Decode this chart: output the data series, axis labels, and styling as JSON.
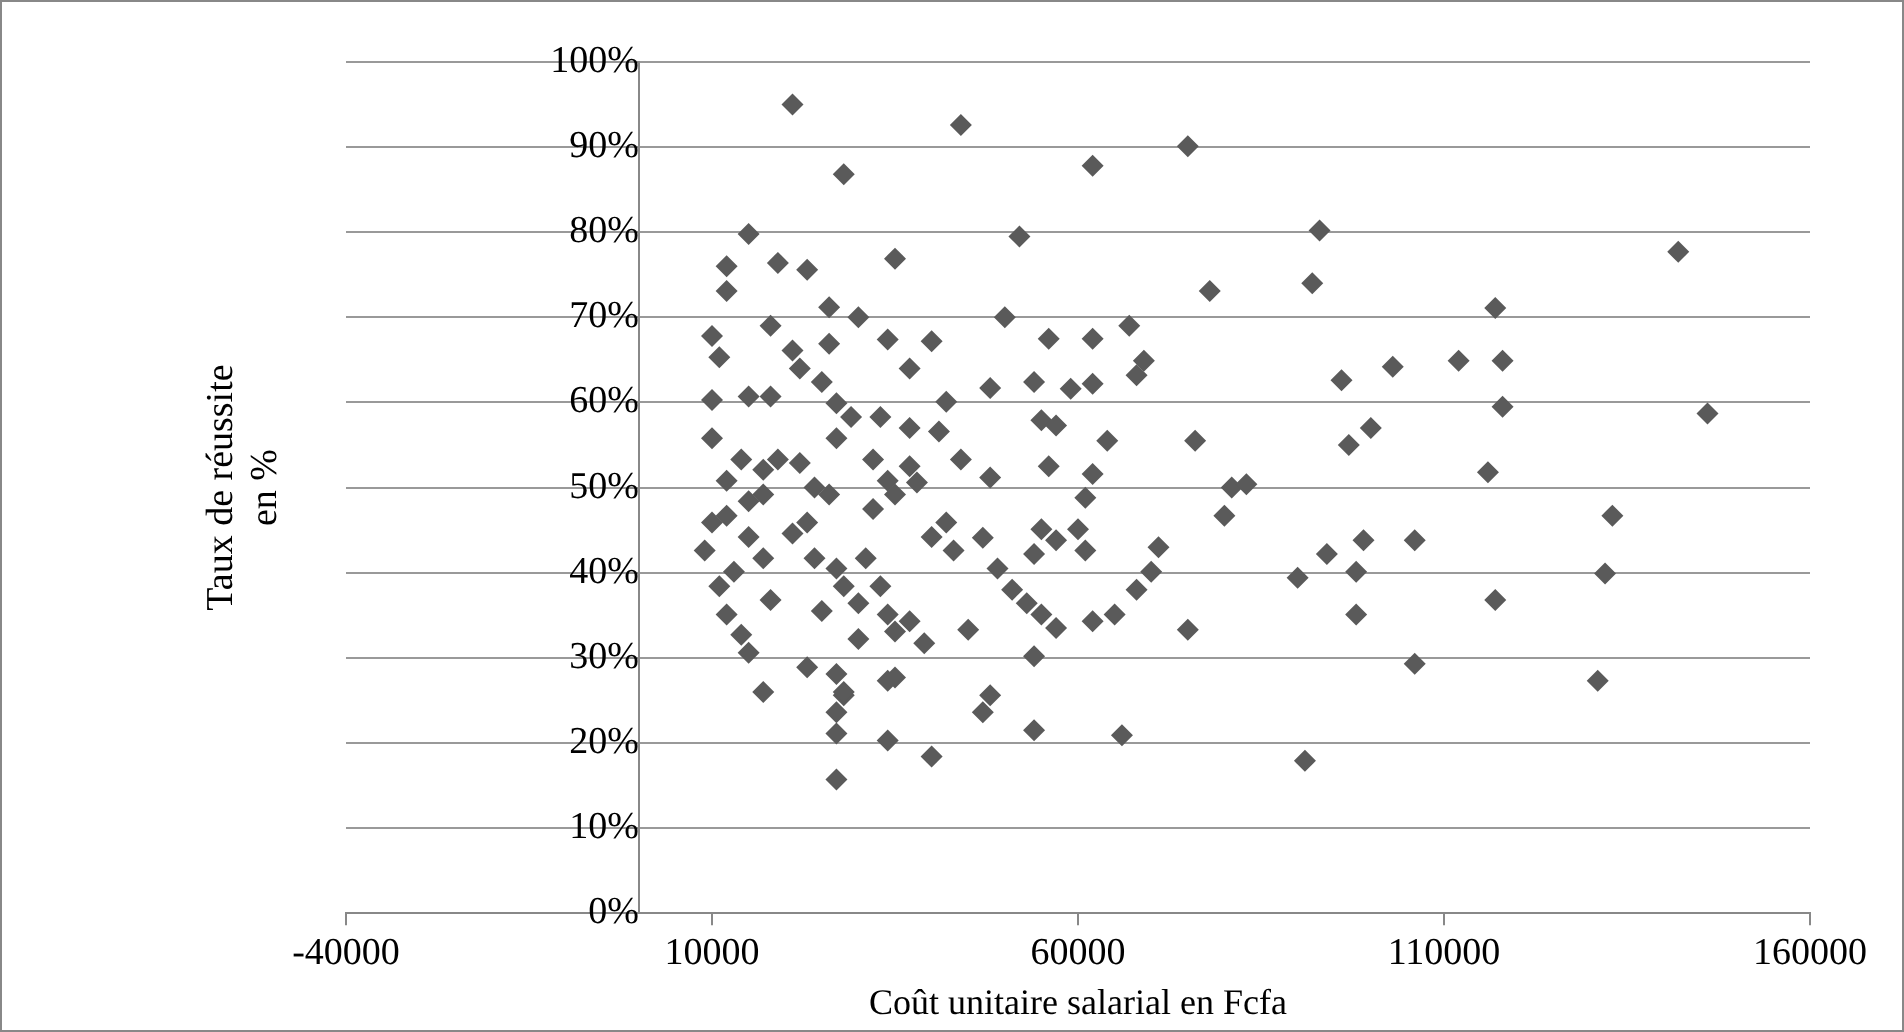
{
  "chart_data": {
    "type": "scatter",
    "xlabel": "Coût unitaire salarial en Fcfa",
    "ylabel": "Taux de réussite en %",
    "xlim": [
      -40000,
      160000
    ],
    "xticks": [
      -40000,
      10000,
      60000,
      110000,
      160000
    ],
    "ylim": [
      0,
      100
    ],
    "yticks": [
      {
        "value": 0,
        "label": "0%"
      },
      {
        "value": 10,
        "label": "10%"
      },
      {
        "value": 20,
        "label": "20%"
      },
      {
        "value": 30,
        "label": "30%"
      },
      {
        "value": 40,
        "label": "40%"
      },
      {
        "value": 50,
        "label": "50%"
      },
      {
        "value": 60,
        "label": "60%"
      },
      {
        "value": 70,
        "label": "70%"
      },
      {
        "value": 80,
        "label": "80%"
      },
      {
        "value": 90,
        "label": "90%"
      },
      {
        "value": 100,
        "label": "100%"
      }
    ],
    "grid": "y",
    "legend": false,
    "marker": "diamond",
    "series": [
      {
        "color": "#5a5a5a",
        "x": [
          142000,
          146000,
          133000,
          132000,
          131000,
          93000,
          92000,
          117000,
          78000,
          96000,
          103000,
          112000,
          118000,
          118000,
          100000,
          97000,
          116000,
          81000,
          83000,
          80000,
          90000,
          94000,
          99000,
          98000,
          98000,
          106000,
          117000,
          106000,
          91000,
          44000,
          62000,
          75000,
          52000,
          50000,
          40000,
          56000,
          62000,
          67000,
          69000,
          68000,
          48000,
          54000,
          59000,
          62000,
          42000,
          41000,
          55000,
          57000,
          64000,
          76000,
          44000,
          48000,
          56000,
          62000,
          61000,
          38000,
          42000,
          40000,
          43000,
          47000,
          55000,
          57000,
          60000,
          61000,
          54000,
          71000,
          70000,
          68000,
          49000,
          51000,
          53000,
          55000,
          57000,
          62000,
          65000,
          45000,
          39000,
          75000,
          54000,
          48000,
          47000,
          54000,
          66000,
          40000,
          21000,
          28000,
          15000,
          35000,
          12000,
          19000,
          23000,
          12000,
          26000,
          30000,
          10000,
          11000,
          18000,
          21000,
          22000,
          26000,
          34000,
          37000,
          10000,
          15000,
          18000,
          25000,
          27000,
          29000,
          33000,
          37000,
          10000,
          27000,
          14000,
          12000,
          17000,
          19000,
          15000,
          12000,
          17000,
          22000,
          24000,
          32000,
          34000,
          37000,
          10000,
          9000,
          21000,
          23000,
          26000,
          32000,
          35000,
          15000,
          17000,
          13000,
          24000,
          27000,
          28000,
          31000,
          33000,
          11000,
          12000,
          14000,
          18000,
          25000,
          30000,
          34000,
          37000,
          30000,
          23000,
          27000,
          17000,
          35000,
          28000,
          15000,
          28000,
          27000,
          27000,
          34000,
          34000,
          27000,
          35000
        ],
        "values": [
          77.7,
          58.7,
          46.7,
          39.9,
          27.3,
          80.2,
          74.0,
          71.1,
          73.1,
          62.6,
          64.2,
          64.9,
          64.9,
          59.5,
          57.0,
          55.0,
          51.8,
          50.0,
          50.4,
          46.7,
          39.4,
          42.2,
          43.8,
          40.1,
          35.1,
          43.8,
          36.8,
          29.3,
          17.9,
          92.6,
          87.8,
          90.1,
          79.5,
          70.0,
          67.2,
          67.5,
          67.5,
          69.0,
          64.9,
          63.2,
          61.7,
          62.4,
          61.6,
          62.2,
          60.1,
          56.6,
          57.9,
          57.3,
          55.5,
          55.5,
          53.3,
          51.2,
          52.5,
          51.6,
          48.8,
          50.6,
          45.9,
          44.2,
          42.6,
          44.1,
          45.1,
          43.8,
          45.1,
          42.6,
          42.2,
          43.0,
          40.1,
          38.0,
          40.5,
          38.0,
          36.4,
          35.1,
          33.5,
          34.3,
          35.1,
          33.3,
          31.7,
          33.3,
          30.2,
          25.6,
          23.6,
          21.5,
          20.9,
          18.4,
          95.0,
          86.8,
          79.8,
          76.9,
          76.0,
          76.4,
          75.6,
          73.1,
          71.2,
          70.0,
          67.8,
          65.3,
          69.0,
          66.1,
          64.0,
          66.9,
          67.4,
          64.0,
          60.3,
          60.7,
          60.7,
          62.4,
          59.9,
          58.3,
          58.3,
          57.0,
          55.8,
          55.8,
          53.3,
          50.8,
          52.1,
          53.3,
          48.4,
          46.7,
          49.2,
          52.9,
          50.0,
          53.3,
          50.8,
          52.5,
          45.9,
          42.6,
          44.6,
          45.9,
          49.2,
          47.5,
          49.2,
          44.2,
          41.7,
          40.1,
          41.7,
          40.5,
          38.4,
          41.7,
          38.4,
          38.4,
          35.1,
          32.7,
          36.8,
          35.5,
          36.4,
          35.1,
          34.3,
          32.2,
          28.9,
          28.1,
          26.0,
          27.7,
          25.6,
          30.6,
          26.0,
          23.6,
          21.1,
          27.3,
          20.3,
          15.7,
          33.1
        ]
      }
    ]
  }
}
